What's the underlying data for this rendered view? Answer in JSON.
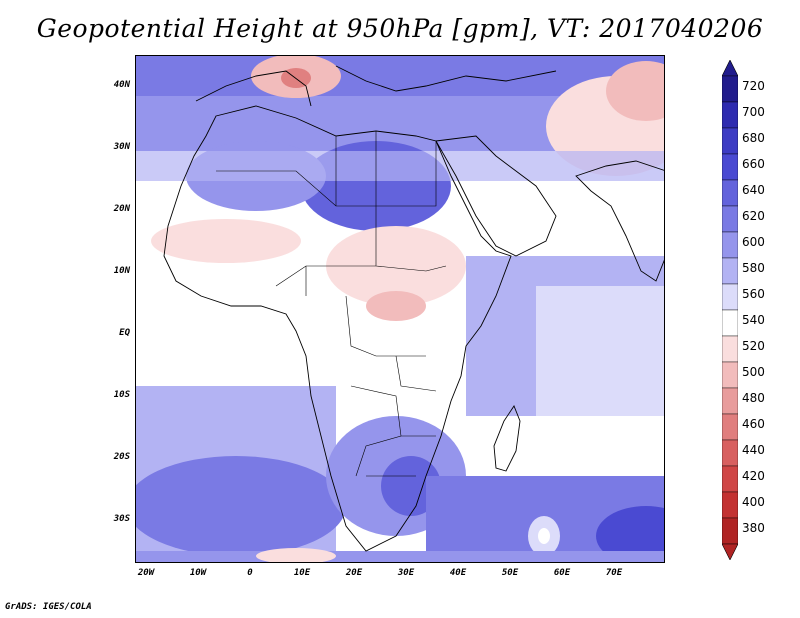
{
  "title": "Geopotential Height at 950hPa [gpm], VT: 2017040206",
  "credit": "GrADS: IGES/COLA",
  "lat_labels": [
    "40N",
    "30N",
    "20N",
    "10N",
    "EQ",
    "10S",
    "20S",
    "30S"
  ],
  "lon_labels": [
    "20W",
    "10W",
    "0",
    "10E",
    "20E",
    "30E",
    "40E",
    "50E",
    "60E",
    "70E"
  ],
  "colorbar": {
    "levels": [
      "720",
      "700",
      "680",
      "660",
      "640",
      "620",
      "600",
      "580",
      "560",
      "540",
      "520",
      "500",
      "480",
      "460",
      "440",
      "420",
      "400",
      "380"
    ],
    "colors": [
      "#211c8c",
      "#2e2bb0",
      "#3d3cc4",
      "#4a4ad2",
      "#6363dc",
      "#7a7ae4",
      "#9595ec",
      "#b3b3f3",
      "#dcdcfa",
      "#ffffff",
      "#fadede",
      "#f2bcbc",
      "#e89c9c",
      "#e07e7e",
      "#d86060",
      "#d04646",
      "#c33232",
      "#b02424"
    ]
  },
  "map": {
    "region": "Africa",
    "lat_range": [
      -37,
      45
    ],
    "lon_range": [
      -22,
      80
    ]
  }
}
